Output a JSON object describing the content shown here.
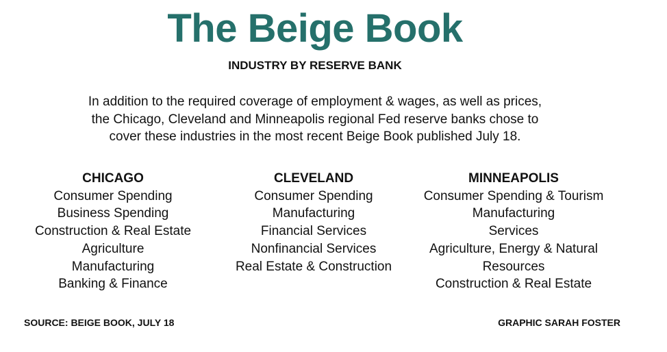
{
  "header": {
    "title": "The Beige Book",
    "subtitle": "INDUSTRY BY RESERVE BANK"
  },
  "description": [
    "In addition to the required coverage of employment & wages, as well as prices,",
    "the Chicago, Cleveland and Minneapolis regional Fed reserve banks chose to",
    "cover these industries in the most recent Beige Book published July 18."
  ],
  "columns": [
    {
      "bank": "CHICAGO",
      "industries": [
        "Consumer Spending",
        "Business Spending",
        "Construction & Real Estate",
        "Agriculture",
        "Manufacturing",
        "Banking & Finance"
      ]
    },
    {
      "bank": "CLEVELAND",
      "industries": [
        "Consumer Spending",
        "Manufacturing",
        "Financial Services",
        "Nonfinancial Services",
        "Real Estate & Construction"
      ]
    },
    {
      "bank": "MINNEAPOLIS",
      "industries": [
        "Consumer Spending & Tourism",
        "Manufacturing",
        "Services",
        "Agriculture, Energy & Natural Resources",
        "Construction & Real Estate"
      ]
    }
  ],
  "footer": {
    "source": "SOURCE: BEIGE BOOK, JULY 18",
    "credit": "GRAPHIC SARAH FOSTER"
  }
}
